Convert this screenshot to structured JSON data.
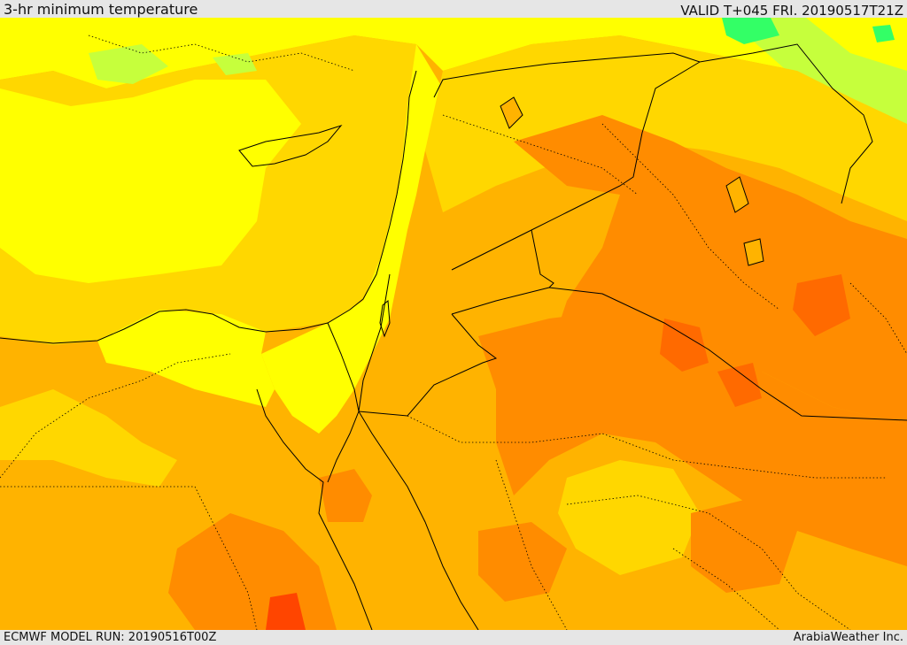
{
  "header": {
    "title": "3-hr minimum temperature",
    "valid": "VALID T+045 FRI. 20190517T21Z"
  },
  "footer": {
    "model_run": "ECMWF MODEL RUN: 20190516T00Z",
    "credit": "ArabiaWeather Inc."
  },
  "colors": {
    "bright_yellow": "#ffff00",
    "gold": "#ffd700",
    "light_orange": "#ffb300",
    "orange": "#ff8c00",
    "dark_orange": "#ff6a00",
    "red_orange": "#ff4500",
    "light_green": "#c6ff3c",
    "green": "#33ff66",
    "border_color": "#000000"
  }
}
